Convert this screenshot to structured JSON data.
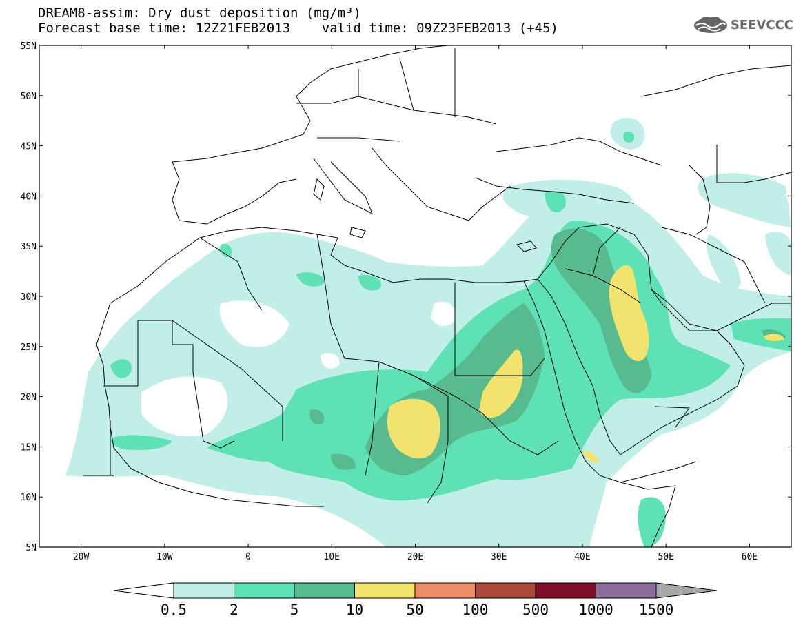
{
  "title_line1": "DREAM8-assim: Dry dust deposition (mg/m³)",
  "title_line2": "Forecast base time: 12Z21FEB2013    valid time: 09Z23FEB2013 (+45)",
  "logo_text": "SEEVCCC",
  "map": {
    "lon_range": [
      -25,
      65
    ],
    "lat_range": [
      5,
      55
    ],
    "lat_ticks": [
      {
        "label": "55N",
        "value": 55
      },
      {
        "label": "50N",
        "value": 50
      },
      {
        "label": "45N",
        "value": 45
      },
      {
        "label": "40N",
        "value": 40
      },
      {
        "label": "35N",
        "value": 35
      },
      {
        "label": "30N",
        "value": 30
      },
      {
        "label": "25N",
        "value": 25
      },
      {
        "label": "20N",
        "value": 20
      },
      {
        "label": "15N",
        "value": 15
      },
      {
        "label": "10N",
        "value": 10
      },
      {
        "label": "5N",
        "value": 5
      }
    ],
    "lon_ticks": [
      {
        "label": "20W",
        "value": -20
      },
      {
        "label": "10W",
        "value": -10
      },
      {
        "label": "0",
        "value": 0
      },
      {
        "label": "10E",
        "value": 10
      },
      {
        "label": "20E",
        "value": 20
      },
      {
        "label": "30E",
        "value": 30
      },
      {
        "label": "40E",
        "value": 40
      },
      {
        "label": "50E",
        "value": 50
      },
      {
        "label": "60E",
        "value": 60
      }
    ]
  },
  "colorbar": {
    "labels": [
      "0.5",
      "2",
      "5",
      "10",
      "50",
      "100",
      "500",
      "1000",
      "1500"
    ],
    "colors": [
      "#c1efe8",
      "#5fe1b6",
      "#58ba8f",
      "#f2e36e",
      "#ea8e68",
      "#a94a3d",
      "#7c0f27",
      "#8c6d9e"
    ],
    "under_color": "#ffffff",
    "over_color": "#a7a7a7"
  },
  "colors": {
    "c1": "#c1efe8",
    "c2": "#5fe1b6",
    "c3": "#58ba8f",
    "c4": "#f2e36e"
  }
}
